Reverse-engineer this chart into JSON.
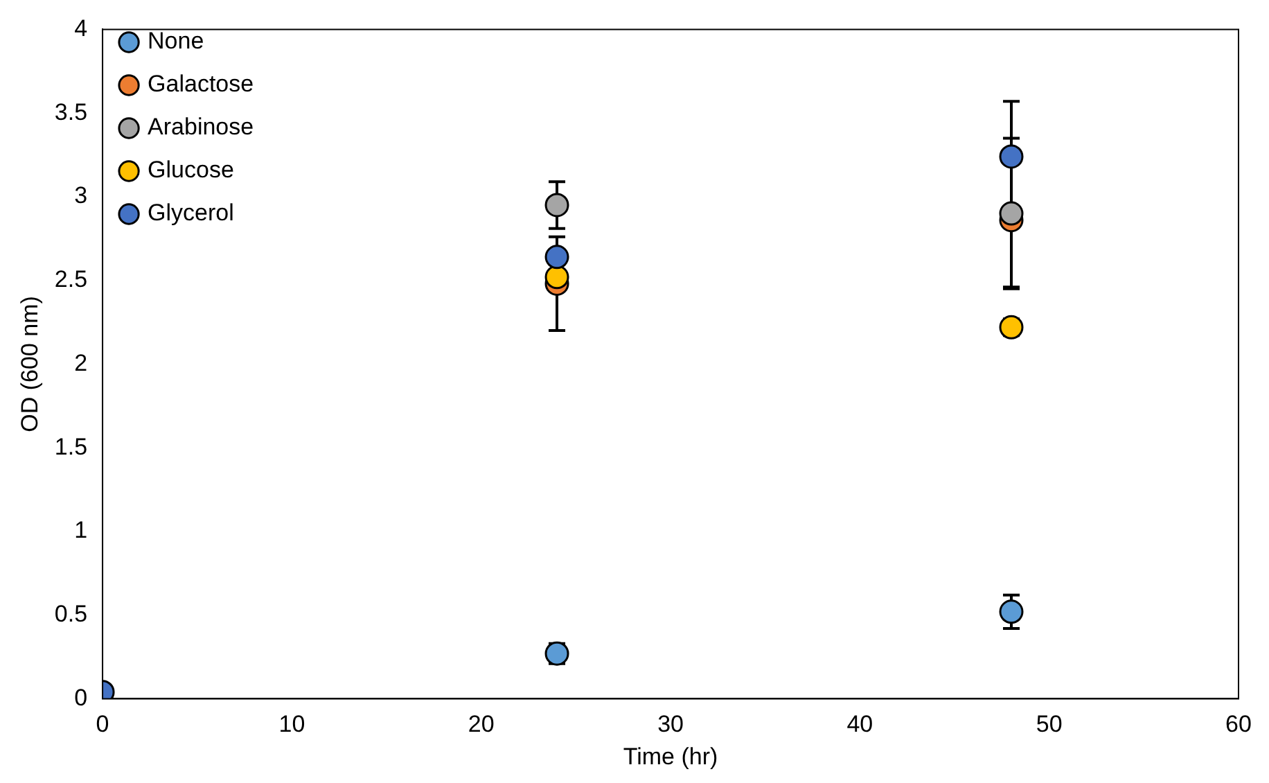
{
  "chart_data": {
    "type": "scatter",
    "xlabel": "Time (hr)",
    "ylabel": "OD (600 nm)",
    "xlim": [
      0,
      60
    ],
    "xticks": [
      0,
      10,
      20,
      30,
      40,
      50,
      60
    ],
    "ylim": [
      0,
      4
    ],
    "yticks": [
      0,
      0.5,
      1,
      1.5,
      2,
      2.5,
      3,
      3.5,
      4
    ],
    "grid": false,
    "legend": "top left",
    "marker": "circle",
    "x": [
      0,
      24,
      48
    ],
    "series": [
      {
        "name": "None",
        "color": "#5b9bd5",
        "values": [
          null,
          0.27,
          0.52
        ],
        "errors": [
          null,
          0.06,
          0.1
        ]
      },
      {
        "name": "Galactose",
        "color": "#ed7d31",
        "values": [
          null,
          2.48,
          2.86
        ],
        "errors": [
          null,
          0.28,
          0.4
        ]
      },
      {
        "name": "Arabinose",
        "color": "#a5a5a5",
        "values": [
          null,
          2.95,
          2.9
        ],
        "errors": [
          null,
          0.14,
          0.45
        ]
      },
      {
        "name": "Glucose",
        "color": "#ffc000",
        "values": [
          null,
          2.52,
          2.22
        ],
        "errors": [
          null,
          null,
          0.05
        ]
      },
      {
        "name": "Glycerol",
        "color": "#4472c4",
        "values": [
          0.04,
          2.64,
          3.24
        ],
        "errors": [
          null,
          null,
          0.33
        ]
      }
    ]
  }
}
